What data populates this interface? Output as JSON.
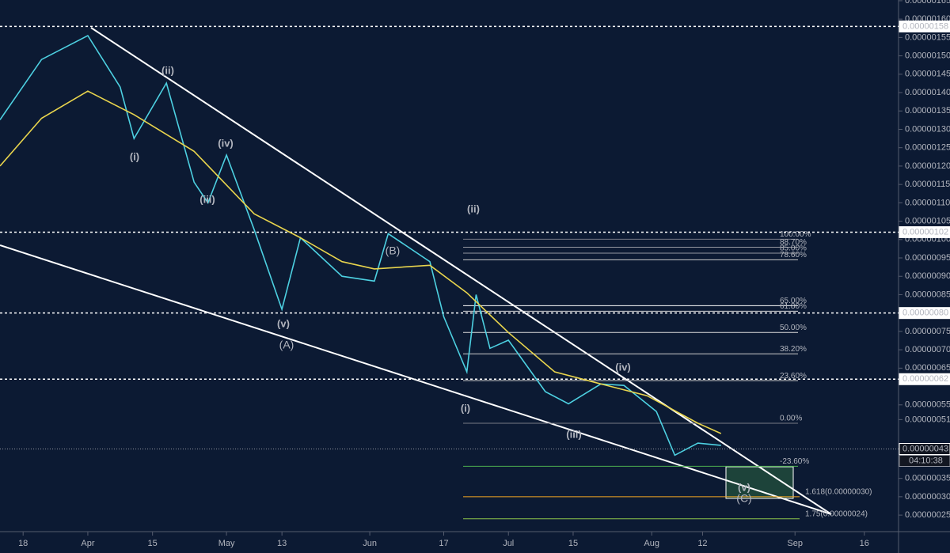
{
  "chart_data": {
    "type": "line",
    "xlim": [
      -5,
      189.4
    ],
    "ylim": [
      2.05e-07,
      1.652e-06
    ],
    "xticks": [
      {
        "value": 0,
        "label": "18"
      },
      {
        "value": 14,
        "label": "Apr"
      },
      {
        "value": 28,
        "label": "15"
      },
      {
        "value": 44,
        "label": "May"
      },
      {
        "value": 56,
        "label": "13"
      },
      {
        "value": 75,
        "label": "Jun"
      },
      {
        "value": 91,
        "label": "17"
      },
      {
        "value": 105,
        "label": "Jul"
      },
      {
        "value": 119,
        "label": "15"
      },
      {
        "value": 136,
        "label": "Aug"
      },
      {
        "value": 147,
        "label": "12"
      },
      {
        "value": 167,
        "label": "Sep"
      },
      {
        "value": 182,
        "label": "16"
      }
    ],
    "yticks": [
      {
        "value": 1.65e-06,
        "label": "0.00000165"
      },
      {
        "value": 1.6e-06,
        "label": "0.00000160"
      },
      {
        "value": 1.55e-06,
        "label": "0.00000155"
      },
      {
        "value": 1.5e-06,
        "label": "0.00000150"
      },
      {
        "value": 1.45e-06,
        "label": "0.00000145"
      },
      {
        "value": 1.4e-06,
        "label": "0.00000140"
      },
      {
        "value": 1.35e-06,
        "label": "0.00000135"
      },
      {
        "value": 1.3e-06,
        "label": "0.00000130"
      },
      {
        "value": 1.25e-06,
        "label": "0.00000125"
      },
      {
        "value": 1.2e-06,
        "label": "0.00000120"
      },
      {
        "value": 1.15e-06,
        "label": "0.00000115"
      },
      {
        "value": 1.1e-06,
        "label": "0.00000110"
      },
      {
        "value": 1.05e-06,
        "label": "0.00000105"
      },
      {
        "value": 1e-06,
        "label": "0.00000100"
      },
      {
        "value": 9.5e-07,
        "label": "0.00000095"
      },
      {
        "value": 9e-07,
        "label": "0.00000090"
      },
      {
        "value": 8.5e-07,
        "label": "0.00000085"
      },
      {
        "value": 7.5e-07,
        "label": "0.00000075"
      },
      {
        "value": 7e-07,
        "label": "0.00000070"
      },
      {
        "value": 6.5e-07,
        "label": "0.00000065"
      },
      {
        "value": 5.5e-07,
        "label": "0.00000055"
      },
      {
        "value": 5.1e-07,
        "label": "0.00000051"
      },
      {
        "value": 3.5e-07,
        "label": "0.00000035"
      },
      {
        "value": 3e-07,
        "label": "0.00000030"
      },
      {
        "value": 2.5e-07,
        "label": "0.00000025"
      }
    ],
    "series": [
      {
        "color": "#4dd0e1",
        "x": [
          -5,
          4,
          14,
          21,
          24,
          31,
          37,
          40,
          44,
          50,
          56,
          60,
          69,
          76,
          79,
          88,
          91,
          96,
          98,
          101,
          105,
          113,
          118,
          125,
          130,
          137,
          141,
          146,
          151
        ],
        "values": [
          1.326e-06,
          1.49e-06,
          1.555e-06,
          1.415e-06,
          1.275e-06,
          1.426e-06,
          1.156e-06,
          1.1e-06,
          1.23e-06,
          1.027e-06,
          8.1e-07,
          1.005e-06,
          9e-07,
          8.87e-07,
          1.016e-06,
          9.4e-07,
          7.9e-07,
          6.4e-07,
          8.5e-07,
          7.04e-07,
          7.26e-07,
          5.86e-07,
          5.53e-07,
          6.07e-07,
          6.03e-07,
          5.32e-07,
          4.13e-07,
          4.46e-07,
          4.4e-07
        ]
      },
      {
        "color": "#e8d44d",
        "x": [
          -5,
          4,
          14,
          24,
          37,
          50,
          60,
          69,
          76,
          88,
          96,
          105,
          115,
          125,
          135,
          146,
          151
        ],
        "values": [
          1.2e-06,
          1.33e-06,
          1.404e-06,
          1.34e-06,
          1.24e-06,
          1.07e-06,
          1.005e-06,
          9.4e-07,
          9.2e-07,
          9.3e-07,
          8.55e-07,
          7.47e-07,
          6.4e-07,
          6.07e-07,
          5.75e-07,
          5e-07,
          4.72e-07
        ]
      }
    ],
    "price_levels": [
      {
        "value": 1.58e-06,
        "label": "0.00000158"
      },
      {
        "value": 1.02e-06,
        "label": "0.00000102"
      },
      {
        "value": 8e-07,
        "label": "0.00000080"
      },
      {
        "value": 6.2e-07,
        "label": "0.00000062"
      },
      {
        "value": 4.3e-07,
        "label": "0.00000043"
      }
    ],
    "countdown": "04:10:38",
    "fib_levels": [
      {
        "value": 1.001e-06,
        "label": "100.00%",
        "color": "#787b86"
      },
      {
        "value": 9.79e-07,
        "label": "88.70%",
        "color": "#9598a1"
      },
      {
        "value": 9.63e-07,
        "label": "85.00%",
        "color": "#9598a1"
      },
      {
        "value": 9.45e-07,
        "label": "78.60%",
        "color": "#cccccc"
      },
      {
        "value": 8.2e-07,
        "label": "65.00%",
        "color": "#ffffff"
      },
      {
        "value": 8.05e-07,
        "label": "61.80%",
        "color": "#dddddd"
      },
      {
        "value": 7.47e-07,
        "label": "50.00%",
        "color": "#dddddd"
      },
      {
        "value": 6.89e-07,
        "label": "38.20%",
        "color": "#cccccc"
      },
      {
        "value": 6.16e-07,
        "label": "23.60%",
        "color": "#cccccc"
      },
      {
        "value": 5e-07,
        "label": "0.00%",
        "color": "#787b86"
      },
      {
        "value": 3.83e-07,
        "label": "-23.60%",
        "color": "#4caf50"
      },
      {
        "value": 3e-07,
        "label": "1.618(0.00000030)",
        "color": "#f5a623"
      },
      {
        "value": 2.4e-07,
        "label": "1.75(0.00000024)",
        "color": "#8bc34a"
      }
    ],
    "wave_labels": [
      {
        "text": "(ii)",
        "color": "#f3e27a"
      },
      {
        "text": "(i)",
        "color": "#f3e27a"
      },
      {
        "text": "(iv)",
        "color": "#f3e27a"
      },
      {
        "text": "(iii)",
        "color": "#f3e27a"
      },
      {
        "text": "(v)",
        "color": "#f3e27a"
      },
      {
        "text": "(A)",
        "color": "#e26a9c"
      },
      {
        "text": "(B)",
        "color": "#e26a9c"
      },
      {
        "text": "(ii)",
        "color": "#f3e27a"
      },
      {
        "text": "(i)",
        "color": "#f3e27a"
      },
      {
        "text": "(iii)",
        "color": "#f3e27a"
      },
      {
        "text": "(iv)",
        "color": "#f3e27a"
      },
      {
        "text": "(v)",
        "color": "#f3e27a"
      },
      {
        "text": "(C)",
        "color": "#e26a9c"
      }
    ]
  }
}
